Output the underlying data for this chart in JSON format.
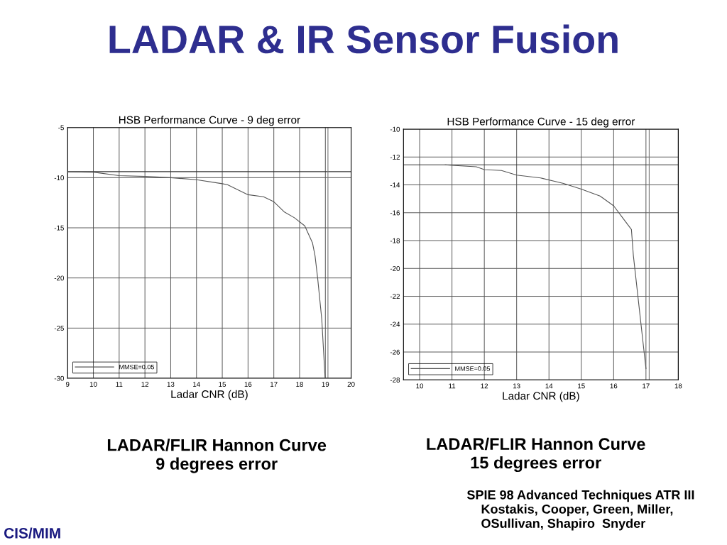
{
  "chart_data": [
    {
      "type": "line",
      "title": "HSB Performance Curve - 9 deg error",
      "xlabel": "Ladar CNR (dB)",
      "annotations": [
        "LADAR & IR Sensor Fusion",
        "LADAR/FLIR Hannon Curve\n9 degrees error",
        "CIS/MIM"
      ],
      "x": [
        9,
        10,
        11,
        12,
        13,
        14,
        15,
        15.2,
        16,
        16.6,
        17,
        17.4,
        17.8,
        18.2,
        18.5,
        18.6,
        18.7,
        18.86,
        18.99
      ],
      "series": [
        {
          "name": "MMSE=0.05",
          "color": "#555555",
          "values": [
            -9.43,
            -9.45,
            -9.8,
            -9.88,
            -10.0,
            -10.2,
            -10.6,
            -10.7,
            -11.7,
            -11.9,
            -12.4,
            -13.4,
            -14.0,
            -14.8,
            -16.5,
            -17.8,
            -20,
            -24.1,
            -30
          ]
        }
      ],
      "ref_lines": [
        {
          "axis": "y",
          "value": -9.4,
          "color": "#333333"
        },
        {
          "axis": "x",
          "value": 19.1,
          "color": "#777777"
        }
      ],
      "xlim": [
        9,
        20
      ],
      "xticks": [
        9,
        10,
        11,
        12,
        13,
        14,
        15,
        16,
        17,
        18,
        19,
        20
      ],
      "ylim": [
        -30,
        -5
      ],
      "yticks": [
        -30,
        -25,
        -20,
        -15,
        -10,
        -5
      ],
      "grid": true,
      "legend": "bottom left",
      "line_style": "solid",
      "marker": "none"
    },
    {
      "type": "line",
      "title": "HSB Performance Curve - 15 deg error",
      "xlabel": "Ladar CNR (dB)",
      "annotations": [
        "LADAR/FLIR Hannon Curve\n15 degrees error",
        "SPIE 98 Advanced Techniques ATR III\n    Kostakis, Cooper, Green, Miller,\n    OSullivan, Shapiro  Snyder"
      ],
      "x": [
        10.79,
        11,
        11.75,
        12,
        12.53,
        13,
        13.74,
        14.45,
        15,
        15.58,
        16,
        16.29,
        16.55,
        16.61,
        17.0
      ],
      "series": [
        {
          "name": "MMSE=0.05",
          "color": "#555555",
          "values": [
            -12.56,
            -12.6,
            -12.7,
            -12.9,
            -12.97,
            -13.3,
            -13.5,
            -13.9,
            -14.3,
            -14.8,
            -15.5,
            -16.4,
            -17.2,
            -19.06,
            -27.2
          ]
        }
      ],
      "ref_lines": [
        {
          "axis": "y",
          "value": -12.56,
          "color": "#333333"
        },
        {
          "axis": "x",
          "value": 17.1,
          "color": "#777777"
        }
      ],
      "xlim": [
        9.5,
        18
      ],
      "xticks": [
        10,
        11,
        12,
        13,
        14,
        15,
        16,
        17,
        18
      ],
      "ylim": [
        -28,
        -10
      ],
      "yticks": [
        -28,
        -26,
        -24,
        -22,
        -20,
        -18,
        -16,
        -14,
        -12,
        -10
      ],
      "grid": true,
      "legend": "bottom left",
      "line_style": "solid",
      "marker": "none"
    }
  ]
}
